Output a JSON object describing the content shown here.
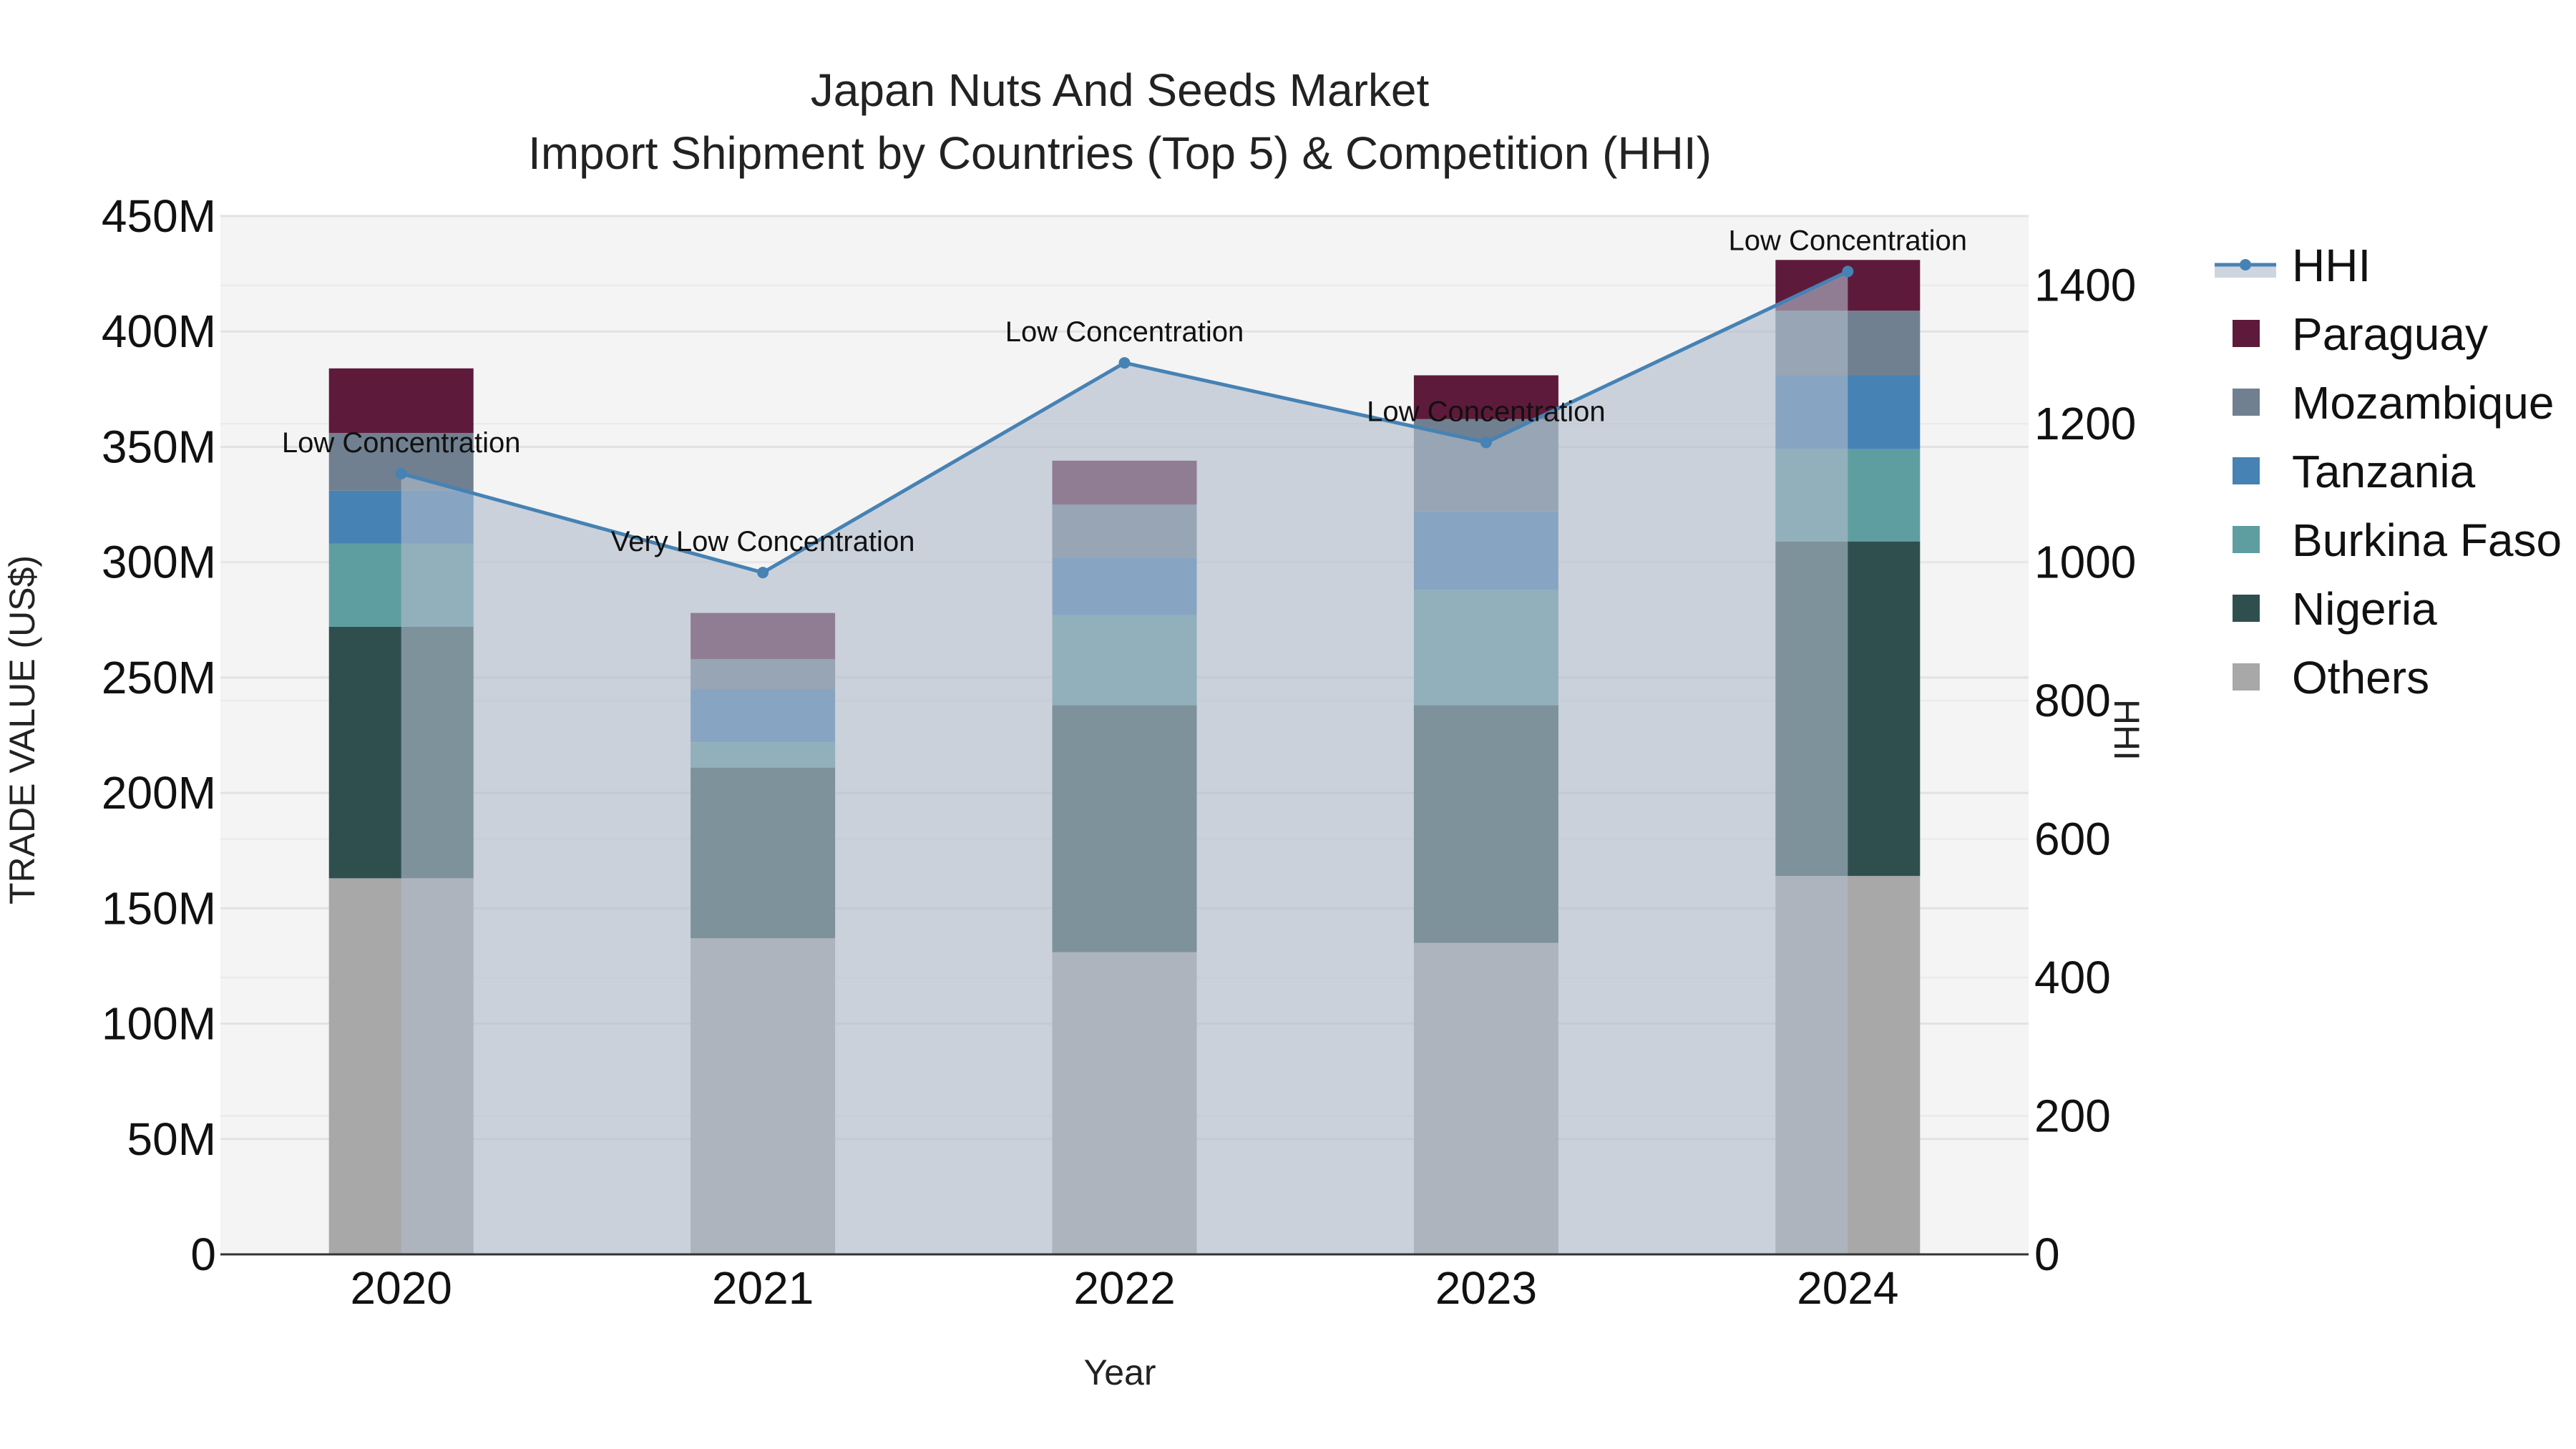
{
  "chart_data": {
    "type": "bar",
    "title": "Japan Nuts And Seeds Market",
    "subtitle": "Import Shipment by Countries (Top 5) & Competition (HHI)",
    "xlabel": "Year",
    "ylabel": "TRADE VALUE (US$)",
    "y2label": "HHI",
    "categories": [
      "2020",
      "2021",
      "2022",
      "2023",
      "2024"
    ],
    "ylim": [
      0,
      450000000
    ],
    "y2lim": [
      0,
      1500
    ],
    "yticks": [
      {
        "value": 0,
        "label": "0"
      },
      {
        "value": 50000000,
        "label": "50M"
      },
      {
        "value": 100000000,
        "label": "100M"
      },
      {
        "value": 150000000,
        "label": "150M"
      },
      {
        "value": 200000000,
        "label": "200M"
      },
      {
        "value": 250000000,
        "label": "250M"
      },
      {
        "value": 300000000,
        "label": "300M"
      },
      {
        "value": 350000000,
        "label": "350M"
      },
      {
        "value": 400000000,
        "label": "400M"
      },
      {
        "value": 450000000,
        "label": "450M"
      }
    ],
    "y2ticks": [
      {
        "value": 0,
        "label": "0"
      },
      {
        "value": 200,
        "label": "200"
      },
      {
        "value": 400,
        "label": "400"
      },
      {
        "value": 600,
        "label": "600"
      },
      {
        "value": 800,
        "label": "800"
      },
      {
        "value": 1000,
        "label": "1000"
      },
      {
        "value": 1200,
        "label": "1200"
      },
      {
        "value": 1400,
        "label": "1400"
      }
    ],
    "series": [
      {
        "name": "Others",
        "color": "#a8a8a8",
        "values": [
          163000000,
          137000000,
          131000000,
          135000000,
          164000000
        ]
      },
      {
        "name": "Nigeria",
        "color": "#2f4f4f",
        "values": [
          109000000,
          74000000,
          107000000,
          103000000,
          145000000
        ]
      },
      {
        "name": "Burkina Faso",
        "color": "#5f9ea0",
        "values": [
          36000000,
          11000000,
          39000000,
          50000000,
          40000000
        ]
      },
      {
        "name": "Tanzania",
        "color": "#4682b4",
        "values": [
          23000000,
          23000000,
          25000000,
          34000000,
          32000000
        ]
      },
      {
        "name": "Mozambique",
        "color": "#708090",
        "values": [
          25000000,
          13000000,
          23000000,
          40000000,
          28000000
        ]
      },
      {
        "name": "Paraguay",
        "color": "#5e1a3a",
        "values": [
          28000000,
          20000000,
          19000000,
          19000000,
          22000000
        ]
      }
    ],
    "hhi": {
      "name": "HHI",
      "color": "#4682b4",
      "values": [
        1128,
        985,
        1288,
        1173,
        1420
      ],
      "labels": [
        "Low Concentration",
        "Very Low Concentration",
        "Low Concentration",
        "Low Concentration",
        "Low Concentration"
      ]
    },
    "legend": [
      "HHI",
      "Paraguay",
      "Mozambique",
      "Tanzania",
      "Burkina Faso",
      "Nigeria",
      "Others"
    ],
    "legend_position": "right",
    "grid": true
  }
}
